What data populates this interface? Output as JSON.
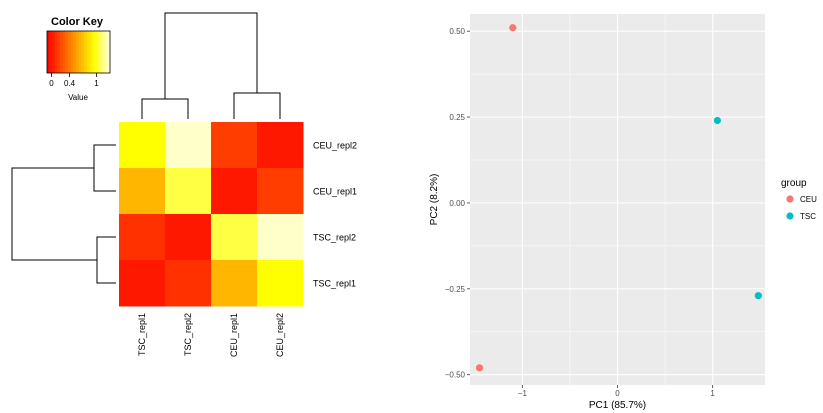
{
  "chart_data": [
    {
      "type": "heatmap",
      "color_key": {
        "title": "Color Key",
        "ticks": [
          {
            "label": "0",
            "value": 0
          },
          {
            "label": "0.4",
            "value": 0.4
          },
          {
            "label": "1",
            "value": 1
          }
        ],
        "value_label": "Value",
        "range": [
          -0.1,
          1.3
        ]
      },
      "rows": [
        "CEU_repl2",
        "CEU_repl1",
        "TSC_repl2",
        "TSC_repl1"
      ],
      "columns": [
        "TSC_repl1",
        "TSC_repl2",
        "CEU_repl1",
        "CEU_repl2"
      ],
      "values": [
        [
          0.95,
          1.25,
          0.15,
          0.0
        ],
        [
          0.65,
          1.05,
          0.0,
          0.15
        ],
        [
          0.1,
          0.0,
          1.05,
          1.25
        ],
        [
          0.0,
          0.1,
          0.65,
          0.95
        ]
      ]
    },
    {
      "type": "scatter",
      "xlabel": "PC1 (85.7%)",
      "ylabel": "PC2 (8.2%)",
      "xlim": [
        -1.55,
        1.55
      ],
      "ylim": [
        -0.53,
        0.55
      ],
      "x_ticks": [
        {
          "label": "−1",
          "value": -1
        },
        {
          "label": "0",
          "value": 0
        },
        {
          "label": "1",
          "value": 1
        }
      ],
      "y_ticks": [
        {
          "label": "0.50",
          "value": 0.5
        },
        {
          "label": "0.25",
          "value": 0.25
        },
        {
          "label": "0.00",
          "value": 0
        },
        {
          "label": "−0.25",
          "value": -0.25
        },
        {
          "label": "−0.50",
          "value": -0.5
        }
      ],
      "grid": true,
      "legend": {
        "title": "group",
        "position": "right"
      },
      "series": [
        {
          "name": "CEU",
          "color": "#F8766D",
          "points": [
            {
              "x": -1.1,
              "y": 0.51
            },
            {
              "x": -1.45,
              "y": -0.48
            }
          ]
        },
        {
          "name": "TSC",
          "color": "#00BFC4",
          "points": [
            {
              "x": 1.05,
              "y": 0.24
            },
            {
              "x": 1.48,
              "y": -0.27
            }
          ]
        }
      ]
    }
  ]
}
